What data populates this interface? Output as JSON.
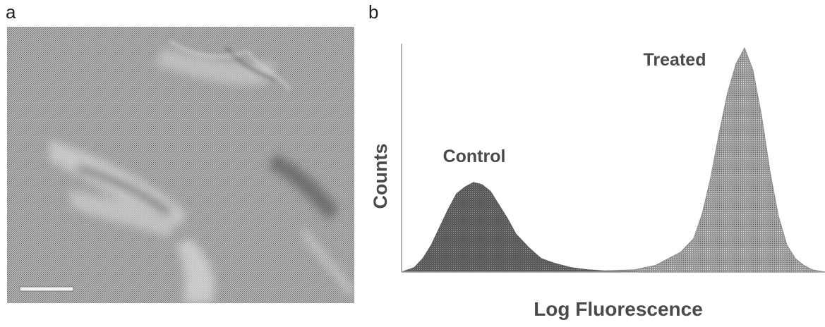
{
  "panels": {
    "a": {
      "label": "a"
    },
    "b": {
      "label": "b"
    }
  },
  "colors": {
    "control_fill": "#5a5a5a",
    "treated_fill": "#8c8c8c",
    "axis": "#9a9a9a",
    "micrograph_base": "#a9a9a9"
  },
  "chart_data": {
    "type": "area",
    "title": "",
    "xlabel": "Log Fluorescence",
    "ylabel": "Counts",
    "x_ticks": "none",
    "y_ticks": "none",
    "xlim": [
      0,
      100
    ],
    "ylim": [
      0,
      100
    ],
    "grid": false,
    "legend": "none",
    "series": [
      {
        "name": "Control",
        "x": [
          0,
          3,
          5,
          7,
          9,
          11,
          13,
          15,
          17,
          19,
          21,
          23,
          25,
          27,
          30,
          33,
          36,
          40,
          44,
          48,
          52,
          56,
          60
        ],
        "values": [
          0,
          2,
          6,
          12,
          20,
          28,
          35,
          38,
          40,
          39,
          36,
          30,
          24,
          17,
          11,
          6,
          4,
          2,
          1,
          0.5,
          0.3,
          0.1,
          0
        ]
      },
      {
        "name": "Treated",
        "x": [
          40,
          48,
          55,
          60,
          63,
          66,
          69,
          71,
          73,
          75,
          77,
          79,
          81,
          83,
          85,
          87,
          89,
          91,
          93,
          95,
          97,
          100
        ],
        "values": [
          0,
          0.5,
          1,
          3,
          6,
          9,
          15,
          26,
          42,
          62,
          80,
          93,
          100,
          90,
          70,
          45,
          25,
          12,
          6,
          3,
          1,
          0
        ]
      }
    ]
  }
}
